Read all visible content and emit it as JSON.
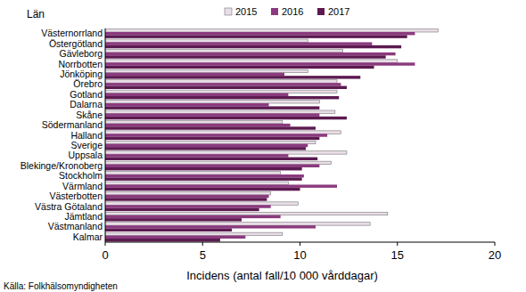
{
  "chart_data": {
    "type": "bar",
    "orientation": "horizontal",
    "y_label": "Län",
    "x_label": "Incidens (antal fall/10 000 vårddagar)",
    "source": "Källa: Folkhälsomyndigheten",
    "categories": [
      "Västernorrland",
      "Östergötland",
      "Gävleborg",
      "Norrbotten",
      "Jönköping",
      "Örebro",
      "Gotland",
      "Dalarna",
      "Skåne",
      "Södermanland",
      "Halland",
      "Sverige",
      "Uppsala",
      "Blekinge/Kronoberg",
      "Stockholm",
      "Värmland",
      "Västerbotten",
      "Västra Götaland",
      "Jämtland",
      "Västmanland",
      "Kalmar"
    ],
    "series": [
      {
        "name": "2015",
        "color": "#e9dde7",
        "values": [
          17.1,
          10.4,
          12.2,
          15.0,
          10.4,
          11.9,
          11.9,
          11.0,
          11.8,
          9.1,
          12.1,
          10.8,
          12.4,
          11.6,
          9.0,
          9.4,
          8.5,
          9.9,
          14.5,
          13.6,
          9.1
        ]
      },
      {
        "name": "2016",
        "color": "#8b3a7e",
        "values": [
          15.9,
          13.7,
          14.9,
          15.9,
          9.2,
          12.1,
          9.4,
          8.4,
          11.0,
          9.5,
          11.4,
          10.4,
          9.4,
          11.0,
          10.2,
          11.9,
          8.4,
          8.5,
          9.0,
          10.8,
          7.2
        ]
      },
      {
        "name": "2017",
        "color": "#5c1a50",
        "values": [
          15.5,
          15.2,
          14.4,
          13.8,
          13.1,
          12.4,
          12.0,
          11.0,
          12.4,
          10.8,
          11.0,
          10.3,
          10.9,
          10.1,
          10.1,
          10.0,
          8.3,
          7.9,
          7.0,
          6.5,
          5.9
        ]
      }
    ],
    "xlim": [
      0,
      20
    ],
    "xticks": [
      0,
      5,
      10,
      15,
      20
    ],
    "grid": false,
    "legend": "top"
  }
}
